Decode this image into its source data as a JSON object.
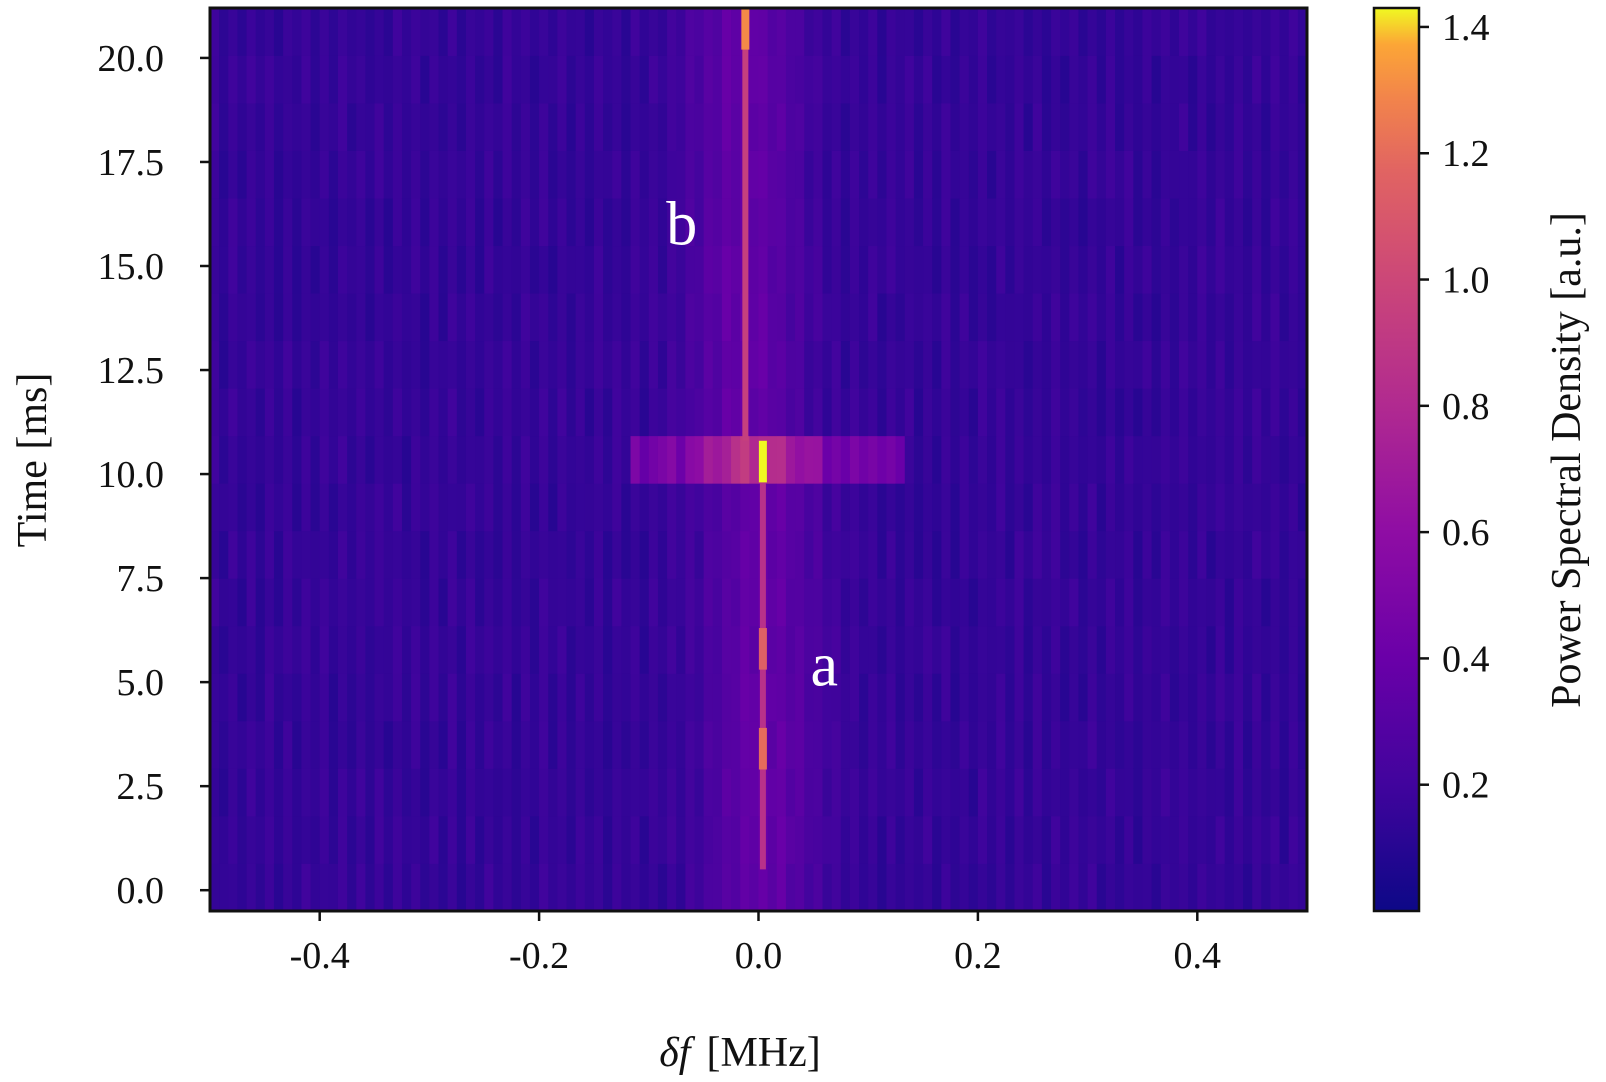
{
  "chart_data": {
    "type": "heatmap",
    "xlabel_symbol": "δf",
    "xlabel_unit": "[MHz]",
    "ylabel": "Time [ms]",
    "colorbar_label": "Power Spectral Density [a.u.]",
    "colormap": "plasma",
    "xlim": [
      -0.5,
      0.5
    ],
    "ylim": [
      -0.5,
      21.2
    ],
    "zlim": [
      0,
      1.43
    ],
    "x_ticks": [
      "-0.4",
      "-0.2",
      "0.0",
      "0.2",
      "0.4"
    ],
    "x_tick_values": [
      -0.4,
      -0.2,
      0.0,
      0.2,
      0.4
    ],
    "y_ticks": [
      "0.0",
      "2.5",
      "5.0",
      "7.5",
      "10.0",
      "12.5",
      "15.0",
      "17.5",
      "20.0"
    ],
    "y_tick_values": [
      0.0,
      2.5,
      5.0,
      7.5,
      10.0,
      12.5,
      15.0,
      17.5,
      20.0
    ],
    "colorbar_ticks": [
      "0.2",
      "0.4",
      "0.6",
      "0.8",
      "1.0",
      "1.2",
      "1.4"
    ],
    "colorbar_tick_values": [
      0.2,
      0.4,
      0.6,
      0.8,
      1.0,
      1.2,
      1.4
    ],
    "background_level": 0.12,
    "ridges": [
      {
        "label": "a",
        "x": 0.004,
        "t_start": 0.5,
        "t_end": 10.8,
        "intensity": 0.85
      },
      {
        "label": "b",
        "x": -0.012,
        "t_start": 10.8,
        "t_end": 21.2,
        "intensity": 0.95
      }
    ],
    "peaks": [
      {
        "x": 0.004,
        "t": 10.3,
        "value": 1.43
      },
      {
        "x": -0.012,
        "t": 20.7,
        "value": 1.3
      },
      {
        "x": 0.004,
        "t": 3.4,
        "value": 1.2
      },
      {
        "x": 0.004,
        "t": 5.8,
        "value": 1.15
      }
    ],
    "broadband_band": {
      "t_start": 9.8,
      "t_end": 10.8,
      "x_start": -0.12,
      "x_end": 0.13,
      "level": 0.35
    },
    "annotations": [
      {
        "text": "b",
        "x": -0.07,
        "t": 16.0
      },
      {
        "text": "a",
        "x": 0.06,
        "t": 5.4
      }
    ]
  }
}
